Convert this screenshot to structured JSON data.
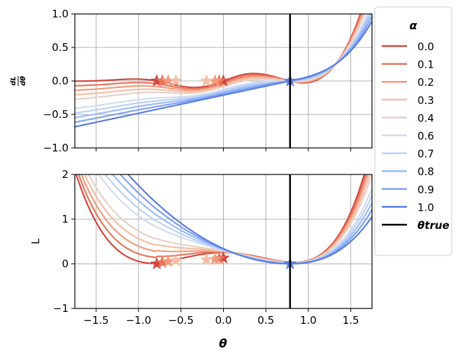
{
  "chart_data": [
    {
      "type": "line",
      "id": "derivative",
      "ylabel": "dL/dθ",
      "xlim": [
        -1.75,
        1.75
      ],
      "ylim": [
        -1.0,
        1.0
      ],
      "xticks": [
        -1.5,
        -1.0,
        -0.5,
        0.0,
        0.5,
        1.0,
        1.5
      ],
      "yticks": [
        -1.0,
        -0.5,
        0.0,
        0.5,
        1.0
      ],
      "xtick_labels": [
        "",
        "",
        "",
        "",
        "",
        "",
        ""
      ],
      "ytick_labels": [
        "−1.0",
        "−0.5",
        "0.0",
        "0.5",
        "1.0"
      ],
      "grid": true,
      "vline": {
        "x": 0.785,
        "label": "θ_true"
      }
    },
    {
      "type": "line",
      "id": "loss",
      "xlabel": "θ",
      "ylabel": "L",
      "xlim": [
        -1.75,
        1.75
      ],
      "ylim": [
        -1,
        2
      ],
      "xticks": [
        -1.5,
        -1.0,
        -0.5,
        0.0,
        0.5,
        1.0,
        1.5
      ],
      "yticks": [
        -1,
        0,
        1,
        2
      ],
      "xtick_labels": [
        "−1.5",
        "−1.0",
        "−0.5",
        "0.0",
        "0.5",
        "1.0",
        "1.5"
      ],
      "ytick_labels": [
        "−1",
        "0",
        "1",
        "2"
      ],
      "grid": true,
      "vline": {
        "x": 0.785,
        "label": "θ_true"
      }
    }
  ],
  "legend": {
    "title": "α",
    "entries": [
      {
        "label": "0.0",
        "color": "#d0473d"
      },
      {
        "label": "0.1",
        "color": "#e7745b"
      },
      {
        "label": "0.2",
        "color": "#f39b7b"
      },
      {
        "label": "0.3",
        "color": "#f6bea4"
      },
      {
        "label": "0.4",
        "color": "#e6d1c9"
      },
      {
        "label": "0.6",
        "color": "#d2dbeb"
      },
      {
        "label": "0.7",
        "color": "#b9d0f8"
      },
      {
        "label": "0.8",
        "color": "#9abcfa"
      },
      {
        "label": "0.9",
        "color": "#7fa2f2"
      },
      {
        "label": "1.0",
        "color": "#5b7de2"
      },
      {
        "label": "θtrue",
        "color": "#000000"
      }
    ]
  },
  "model": {
    "theta_true": 0.785,
    "alphas": [
      0.0,
      0.1,
      0.2,
      0.3,
      0.4,
      0.6,
      0.7,
      0.8,
      0.9,
      1.0
    ],
    "series_colors": [
      "#d0473d",
      "#e7745b",
      "#f39b7b",
      "#f6bea4",
      "#e6d1c9",
      "#d2dbeb",
      "#b9d0f8",
      "#9abcfa",
      "#7fa2f2",
      "#5b7de2"
    ],
    "star_markers": [
      {
        "series": 0,
        "theta": -0.785,
        "dL": 0.0,
        "L": 0.0
      },
      {
        "series": 0,
        "theta": 0.0,
        "dL": 0.0,
        "L": 0.13
      },
      {
        "series": 1,
        "theta": -0.72,
        "dL": 0.0,
        "L": 0.03
      },
      {
        "series": 1,
        "theta": -0.05,
        "dL": 0.0,
        "L": 0.12
      },
      {
        "series": 2,
        "theta": -0.65,
        "dL": 0.0,
        "L": 0.05
      },
      {
        "series": 2,
        "theta": -0.1,
        "dL": 0.0,
        "L": 0.1
      },
      {
        "series": 3,
        "theta": -0.56,
        "dL": 0.0,
        "L": 0.07
      },
      {
        "series": 3,
        "theta": -0.2,
        "dL": 0.0,
        "L": 0.09
      },
      {
        "series": 9,
        "theta": 0.785,
        "dL": 0.0,
        "L": 0.0
      }
    ]
  }
}
